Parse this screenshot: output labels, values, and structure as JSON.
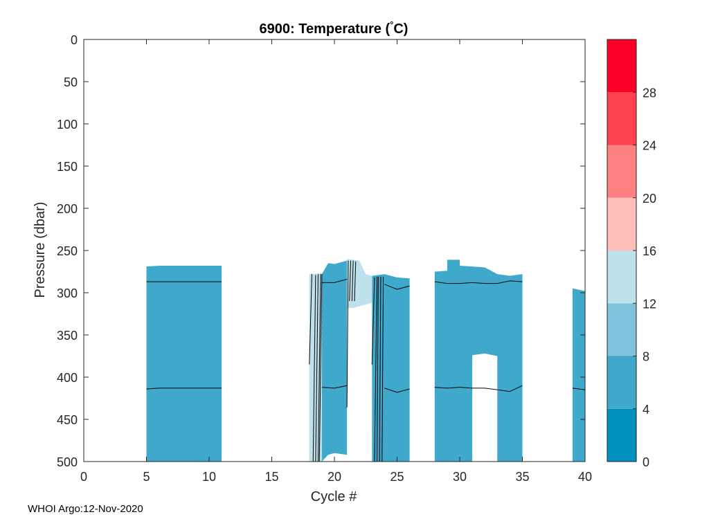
{
  "chart_data": {
    "type": "heatmap",
    "title": "6900:  Temperature (",
    "title_unit": "C)",
    "title_degree": "°",
    "xlabel": "Cycle #",
    "ylabel": "Pressure (dbar)",
    "xlim": [
      0,
      40
    ],
    "ylim": [
      0,
      500
    ],
    "x_ticks": [
      0,
      5,
      10,
      15,
      20,
      25,
      30,
      35,
      40
    ],
    "y_ticks": [
      0,
      50,
      100,
      150,
      200,
      250,
      300,
      350,
      400,
      450,
      500
    ],
    "colorbar": {
      "range": [
        0,
        32
      ],
      "ticks": [
        0,
        4,
        8,
        12,
        16,
        20,
        24,
        28
      ],
      "bands": [
        {
          "from": 0,
          "to": 4,
          "color": "#0090bd"
        },
        {
          "from": 4,
          "to": 8,
          "color": "#3fa9cc"
        },
        {
          "from": 8,
          "to": 12,
          "color": "#80c1dc"
        },
        {
          "from": 12,
          "to": 16,
          "color": "#bee1ec"
        },
        {
          "from": 16,
          "to": 20,
          "color": "#fdbfb9"
        },
        {
          "from": 20,
          "to": 24,
          "color": "#fc8180"
        },
        {
          "from": 24,
          "to": 28,
          "color": "#fd414e"
        },
        {
          "from": 28,
          "to": 32,
          "color": "#fe0027"
        }
      ]
    },
    "filled_regions": [
      {
        "name": "cycles-5-11",
        "color": "#3fa9cc",
        "points": [
          [
            5,
            269
          ],
          [
            6,
            268
          ],
          [
            11,
            268
          ],
          [
            11,
            500
          ],
          [
            5,
            500
          ]
        ]
      },
      {
        "name": "cycles-18-19-light",
        "color": "#bee1ec",
        "points": [
          [
            18,
            278
          ],
          [
            19,
            277
          ],
          [
            19,
            500
          ],
          [
            18,
            500
          ]
        ]
      },
      {
        "name": "cycles-19-21",
        "color": "#3fa9cc",
        "points": [
          [
            19,
            278
          ],
          [
            19.5,
            265
          ],
          [
            20,
            266
          ],
          [
            21,
            262
          ],
          [
            21,
            492
          ],
          [
            20,
            490
          ],
          [
            19.5,
            492
          ],
          [
            19,
            500
          ]
        ]
      },
      {
        "name": "cycles-21-23-light",
        "color": "#bee1ec",
        "points": [
          [
            21,
            260
          ],
          [
            22,
            262
          ],
          [
            22.5,
            278
          ],
          [
            23,
            280
          ],
          [
            23,
            312
          ],
          [
            22.5,
            314
          ],
          [
            21.5,
            318
          ],
          [
            21,
            318
          ]
        ]
      },
      {
        "name": "cycles-23-26",
        "color": "#3fa9cc",
        "points": [
          [
            23,
            280
          ],
          [
            24,
            278
          ],
          [
            25,
            282
          ],
          [
            26,
            283
          ],
          [
            26,
            500
          ],
          [
            23,
            500
          ]
        ]
      },
      {
        "name": "cycles-28-35",
        "color": "#3fa9cc",
        "points": [
          [
            28,
            275
          ],
          [
            29,
            274
          ],
          [
            29,
            261
          ],
          [
            30,
            261
          ],
          [
            30,
            268
          ],
          [
            31,
            269
          ],
          [
            32,
            270
          ],
          [
            33,
            278
          ],
          [
            34,
            280
          ],
          [
            35,
            278
          ],
          [
            35,
            500
          ],
          [
            33,
            500
          ],
          [
            33,
            375
          ],
          [
            32,
            372
          ],
          [
            31,
            374
          ],
          [
            31,
            500
          ],
          [
            28,
            500
          ]
        ]
      },
      {
        "name": "cycles-39-40",
        "color": "#3fa9cc",
        "points": [
          [
            39,
            295
          ],
          [
            40,
            298
          ],
          [
            40,
            500
          ],
          [
            39,
            500
          ]
        ]
      }
    ],
    "contour_lines": [
      {
        "name": "contour-8C-cycles-5-11",
        "points": [
          [
            5,
            287
          ],
          [
            11,
            287
          ]
        ]
      },
      {
        "name": "contour-4C-cycles-5-11",
        "points": [
          [
            5,
            414
          ],
          [
            6,
            413
          ],
          [
            11,
            413
          ]
        ]
      },
      {
        "name": "contour-8C-cycles-19-21",
        "points": [
          [
            19,
            288
          ],
          [
            20,
            288
          ],
          [
            21,
            284
          ]
        ]
      },
      {
        "name": "contour-4C-cycles-19-21",
        "points": [
          [
            19,
            412
          ],
          [
            20,
            413
          ],
          [
            21,
            410
          ]
        ]
      },
      {
        "name": "contour-8C-cycles-23-26",
        "points": [
          [
            24,
            290
          ],
          [
            25,
            296
          ],
          [
            26,
            292
          ]
        ]
      },
      {
        "name": "contour-4C-cycles-23-26",
        "points": [
          [
            24,
            413
          ],
          [
            25,
            418
          ],
          [
            26,
            414
          ]
        ]
      },
      {
        "name": "contour-8C-cycles-28-35",
        "points": [
          [
            28,
            287
          ],
          [
            29,
            289
          ],
          [
            30,
            289
          ],
          [
            31,
            288
          ],
          [
            32,
            289
          ],
          [
            33,
            289
          ],
          [
            34,
            286
          ],
          [
            35,
            287
          ]
        ]
      },
      {
        "name": "contour-4C-cycles-28-35",
        "points": [
          [
            28,
            412
          ],
          [
            29,
            413
          ],
          [
            30,
            412
          ],
          [
            31,
            413
          ],
          [
            32,
            413
          ],
          [
            33,
            415
          ],
          [
            34,
            417
          ],
          [
            35,
            410
          ]
        ]
      },
      {
        "name": "contour-4C-cycles-39-40",
        "points": [
          [
            39,
            413
          ],
          [
            40,
            415
          ]
        ]
      },
      {
        "name": "contour-steep-18-a",
        "points": [
          [
            18,
            385
          ],
          [
            18.2,
            278
          ]
        ]
      },
      {
        "name": "contour-steep-18-b",
        "points": [
          [
            18.3,
            500
          ],
          [
            18.5,
            279
          ]
        ]
      },
      {
        "name": "contour-steep-18-c",
        "points": [
          [
            18.5,
            500
          ],
          [
            18.7,
            278
          ]
        ]
      },
      {
        "name": "contour-steep-18-d",
        "points": [
          [
            18.7,
            500
          ],
          [
            18.9,
            278
          ]
        ]
      },
      {
        "name": "contour-steep-18-e",
        "points": [
          [
            18.8,
            500
          ],
          [
            19,
            278
          ]
        ]
      },
      {
        "name": "contour-steep-21-a",
        "points": [
          [
            21,
            436
          ],
          [
            21.1,
            262
          ]
        ]
      },
      {
        "name": "contour-steep-21-b",
        "points": [
          [
            21.2,
            310
          ],
          [
            21.3,
            262
          ]
        ]
      },
      {
        "name": "contour-steep-21-c",
        "points": [
          [
            21.4,
            310
          ],
          [
            21.5,
            262
          ]
        ]
      },
      {
        "name": "contour-steep-21-d",
        "points": [
          [
            21.6,
            310
          ],
          [
            21.7,
            263
          ]
        ]
      },
      {
        "name": "contour-steep-23-a",
        "points": [
          [
            23,
            385
          ],
          [
            23.2,
            282
          ]
        ]
      },
      {
        "name": "contour-steep-23-b",
        "points": [
          [
            23.2,
            500
          ],
          [
            23.4,
            281
          ]
        ]
      },
      {
        "name": "contour-steep-23-c",
        "points": [
          [
            23.4,
            500
          ],
          [
            23.5,
            281
          ]
        ]
      },
      {
        "name": "contour-steep-23-d",
        "points": [
          [
            23.6,
            500
          ],
          [
            23.7,
            281
          ]
        ]
      },
      {
        "name": "contour-steep-23-e",
        "points": [
          [
            23.8,
            500
          ],
          [
            23.9,
            281
          ]
        ]
      }
    ]
  },
  "footer": {
    "text": "WHOI Argo:12-Nov-2020"
  }
}
